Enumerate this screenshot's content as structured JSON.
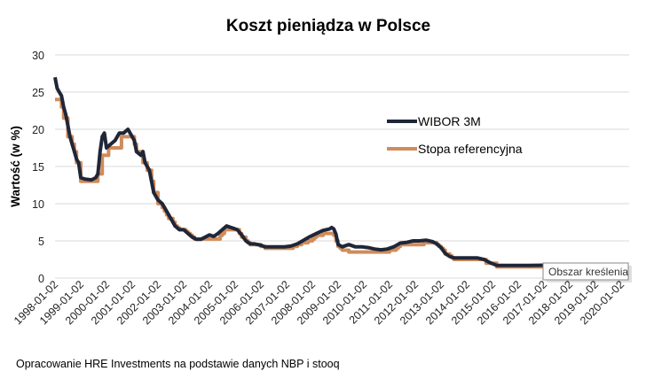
{
  "chart_data": {
    "type": "line",
    "title": "Koszt pieniądza w Polsce",
    "xlabel": "",
    "ylabel": "Wartość (w %)",
    "ylim": [
      0,
      30
    ],
    "yticks": [
      0,
      5,
      10,
      15,
      20,
      25,
      30
    ],
    "xticks": [
      "1998-01-02",
      "1999-01-02",
      "2000-01-02",
      "2001-01-02",
      "2002-01-02",
      "2003-01-02",
      "2004-01-02",
      "2005-01-02",
      "2006-01-02",
      "2007-01-02",
      "2008-01-02",
      "2009-01-02",
      "2010-01-02",
      "2011-01-02",
      "2012-01-02",
      "2013-01-02",
      "2014-01-02",
      "2015-01-02",
      "2016-01-02",
      "2017-01-02",
      "2018-01-02",
      "2019-01-02",
      "2020-01-02"
    ],
    "grid": true,
    "legend_position": "right",
    "colors": {
      "WIBOR 3M": "#1f2638",
      "Stopa referencyjna": "#d08c5b"
    },
    "series": [
      {
        "name": "WIBOR 3M",
        "style": "line",
        "points": [
          [
            "1998-01",
            27
          ],
          [
            "1998-02",
            25.5
          ],
          [
            "1998-03",
            25
          ],
          [
            "1998-04",
            24.5
          ],
          [
            "1998-05",
            23
          ],
          [
            "1998-06",
            22
          ],
          [
            "1998-07",
            20.5
          ],
          [
            "1998-08",
            19
          ],
          [
            "1998-09",
            18
          ],
          [
            "1998-10",
            17
          ],
          [
            "1998-11",
            16
          ],
          [
            "1998-12",
            15.5
          ],
          [
            "1999-01",
            13.5
          ],
          [
            "1999-03",
            13.3
          ],
          [
            "1999-06",
            13.2
          ],
          [
            "1999-08",
            13.5
          ],
          [
            "1999-09",
            14
          ],
          [
            "1999-10",
            17
          ],
          [
            "1999-11",
            19
          ],
          [
            "1999-12",
            19.5
          ],
          [
            "2000-01",
            17.5
          ],
          [
            "2000-03",
            18
          ],
          [
            "2000-05",
            18.5
          ],
          [
            "2000-07",
            19.5
          ],
          [
            "2000-09",
            19.5
          ],
          [
            "2000-11",
            20
          ],
          [
            "2000-12",
            19.5
          ],
          [
            "2001-02",
            18.5
          ],
          [
            "2001-03",
            17
          ],
          [
            "2001-05",
            16.5
          ],
          [
            "2001-06",
            17
          ],
          [
            "2001-07",
            15.5
          ],
          [
            "2001-08",
            15
          ],
          [
            "2001-09",
            14.5
          ],
          [
            "2001-10",
            13
          ],
          [
            "2001-11",
            11.5
          ],
          [
            "2001-12",
            11
          ],
          [
            "2002-01",
            10.5
          ],
          [
            "2002-03",
            10
          ],
          [
            "2002-05",
            9
          ],
          [
            "2002-07",
            8
          ],
          [
            "2002-09",
            7
          ],
          [
            "2002-11",
            6.5
          ],
          [
            "2003-01",
            6.5
          ],
          [
            "2003-03",
            6
          ],
          [
            "2003-05",
            5.5
          ],
          [
            "2003-07",
            5.2
          ],
          [
            "2003-09",
            5.2
          ],
          [
            "2003-11",
            5.5
          ],
          [
            "2004-01",
            5.8
          ],
          [
            "2004-03",
            5.6
          ],
          [
            "2004-05",
            6
          ],
          [
            "2004-07",
            6.5
          ],
          [
            "2004-09",
            7
          ],
          [
            "2004-12",
            6.7
          ],
          [
            "2005-02",
            6.5
          ],
          [
            "2005-04",
            5.8
          ],
          [
            "2005-06",
            5
          ],
          [
            "2005-08",
            4.6
          ],
          [
            "2005-10",
            4.6
          ],
          [
            "2006-01",
            4.4
          ],
          [
            "2006-03",
            4.2
          ],
          [
            "2006-12",
            4.2
          ],
          [
            "2007-03",
            4.3
          ],
          [
            "2007-06",
            4.6
          ],
          [
            "2007-09",
            5.1
          ],
          [
            "2007-12",
            5.6
          ],
          [
            "2008-03",
            6
          ],
          [
            "2008-06",
            6.4
          ],
          [
            "2008-09",
            6.6
          ],
          [
            "2008-10",
            6.8
          ],
          [
            "2008-11",
            6.6
          ],
          [
            "2008-12",
            5.9
          ],
          [
            "2009-01",
            4.5
          ],
          [
            "2009-03",
            4.2
          ],
          [
            "2009-06",
            4.5
          ],
          [
            "2009-09",
            4.2
          ],
          [
            "2009-12",
            4.2
          ],
          [
            "2010-03",
            4.1
          ],
          [
            "2010-06",
            3.9
          ],
          [
            "2010-09",
            3.8
          ],
          [
            "2010-12",
            3.9
          ],
          [
            "2011-03",
            4.2
          ],
          [
            "2011-06",
            4.7
          ],
          [
            "2011-09",
            4.8
          ],
          [
            "2011-12",
            5.0
          ],
          [
            "2012-03",
            5.0
          ],
          [
            "2012-06",
            5.1
          ],
          [
            "2012-09",
            4.9
          ],
          [
            "2012-11",
            4.6
          ],
          [
            "2013-01",
            4.1
          ],
          [
            "2013-03",
            3.3
          ],
          [
            "2013-05",
            2.9
          ],
          [
            "2013-07",
            2.7
          ],
          [
            "2013-12",
            2.7
          ],
          [
            "2014-06",
            2.7
          ],
          [
            "2014-09",
            2.5
          ],
          [
            "2014-12",
            2.05
          ],
          [
            "2015-03",
            1.7
          ],
          [
            "2015-06",
            1.7
          ],
          [
            "2016-06",
            1.7
          ],
          [
            "2017-01",
            1.73
          ]
        ]
      },
      {
        "name": "Stopa referencyjna",
        "style": "step",
        "points": [
          [
            "1998-01",
            24
          ],
          [
            "1998-04",
            23
          ],
          [
            "1998-05",
            21.5
          ],
          [
            "1998-07",
            19
          ],
          [
            "1998-09",
            18
          ],
          [
            "1998-10",
            17
          ],
          [
            "1998-11",
            15.5
          ],
          [
            "1999-01",
            13
          ],
          [
            "1999-09",
            14
          ],
          [
            "1999-11",
            16.5
          ],
          [
            "2000-02",
            17.5
          ],
          [
            "2000-08",
            19
          ],
          [
            "2001-02",
            18
          ],
          [
            "2001-03",
            17
          ],
          [
            "2001-06",
            15.5
          ],
          [
            "2001-08",
            14.5
          ],
          [
            "2001-10",
            13
          ],
          [
            "2001-11",
            11.5
          ],
          [
            "2002-01",
            10
          ],
          [
            "2002-03",
            9.5
          ],
          [
            "2002-04",
            9
          ],
          [
            "2002-05",
            8.5
          ],
          [
            "2002-06",
            8
          ],
          [
            "2002-08",
            7.5
          ],
          [
            "2002-09",
            7
          ],
          [
            "2002-10",
            6.75
          ],
          [
            "2002-11",
            6.5
          ],
          [
            "2003-02",
            6.25
          ],
          [
            "2003-03",
            6
          ],
          [
            "2003-04",
            5.75
          ],
          [
            "2003-05",
            5.5
          ],
          [
            "2003-06",
            5.25
          ],
          [
            "2004-06",
            5.75
          ],
          [
            "2004-07",
            6
          ],
          [
            "2004-08",
            6.5
          ],
          [
            "2005-03",
            6
          ],
          [
            "2005-04",
            5.5
          ],
          [
            "2005-06",
            5
          ],
          [
            "2005-07",
            4.75
          ],
          [
            "2005-08",
            4.5
          ],
          [
            "2006-01",
            4.25
          ],
          [
            "2006-03",
            4
          ],
          [
            "2007-04",
            4.25
          ],
          [
            "2007-06",
            4.5
          ],
          [
            "2007-08",
            4.75
          ],
          [
            "2007-11",
            5
          ],
          [
            "2008-01",
            5.25
          ],
          [
            "2008-02",
            5.5
          ],
          [
            "2008-03",
            5.75
          ],
          [
            "2008-06",
            6
          ],
          [
            "2008-11",
            5.75
          ],
          [
            "2008-12",
            5
          ],
          [
            "2009-01",
            4.25
          ],
          [
            "2009-02",
            4
          ],
          [
            "2009-03",
            3.75
          ],
          [
            "2009-06",
            3.5
          ],
          [
            "2011-01",
            3.75
          ],
          [
            "2011-04",
            4
          ],
          [
            "2011-05",
            4.25
          ],
          [
            "2011-06",
            4.5
          ],
          [
            "2012-05",
            4.75
          ],
          [
            "2012-11",
            4.5
          ],
          [
            "2012-12",
            4.25
          ],
          [
            "2013-01",
            4
          ],
          [
            "2013-02",
            3.75
          ],
          [
            "2013-03",
            3.25
          ],
          [
            "2013-05",
            3
          ],
          [
            "2013-06",
            2.75
          ],
          [
            "2013-07",
            2.5
          ],
          [
            "2014-10",
            2
          ],
          [
            "2015-03",
            1.5
          ],
          [
            "2017-01",
            1.5
          ]
        ]
      }
    ]
  },
  "footer": "Opracowanie HRE Investments na podstawie danych NBP i stooq",
  "tooltip": "Obszar kreślenia"
}
